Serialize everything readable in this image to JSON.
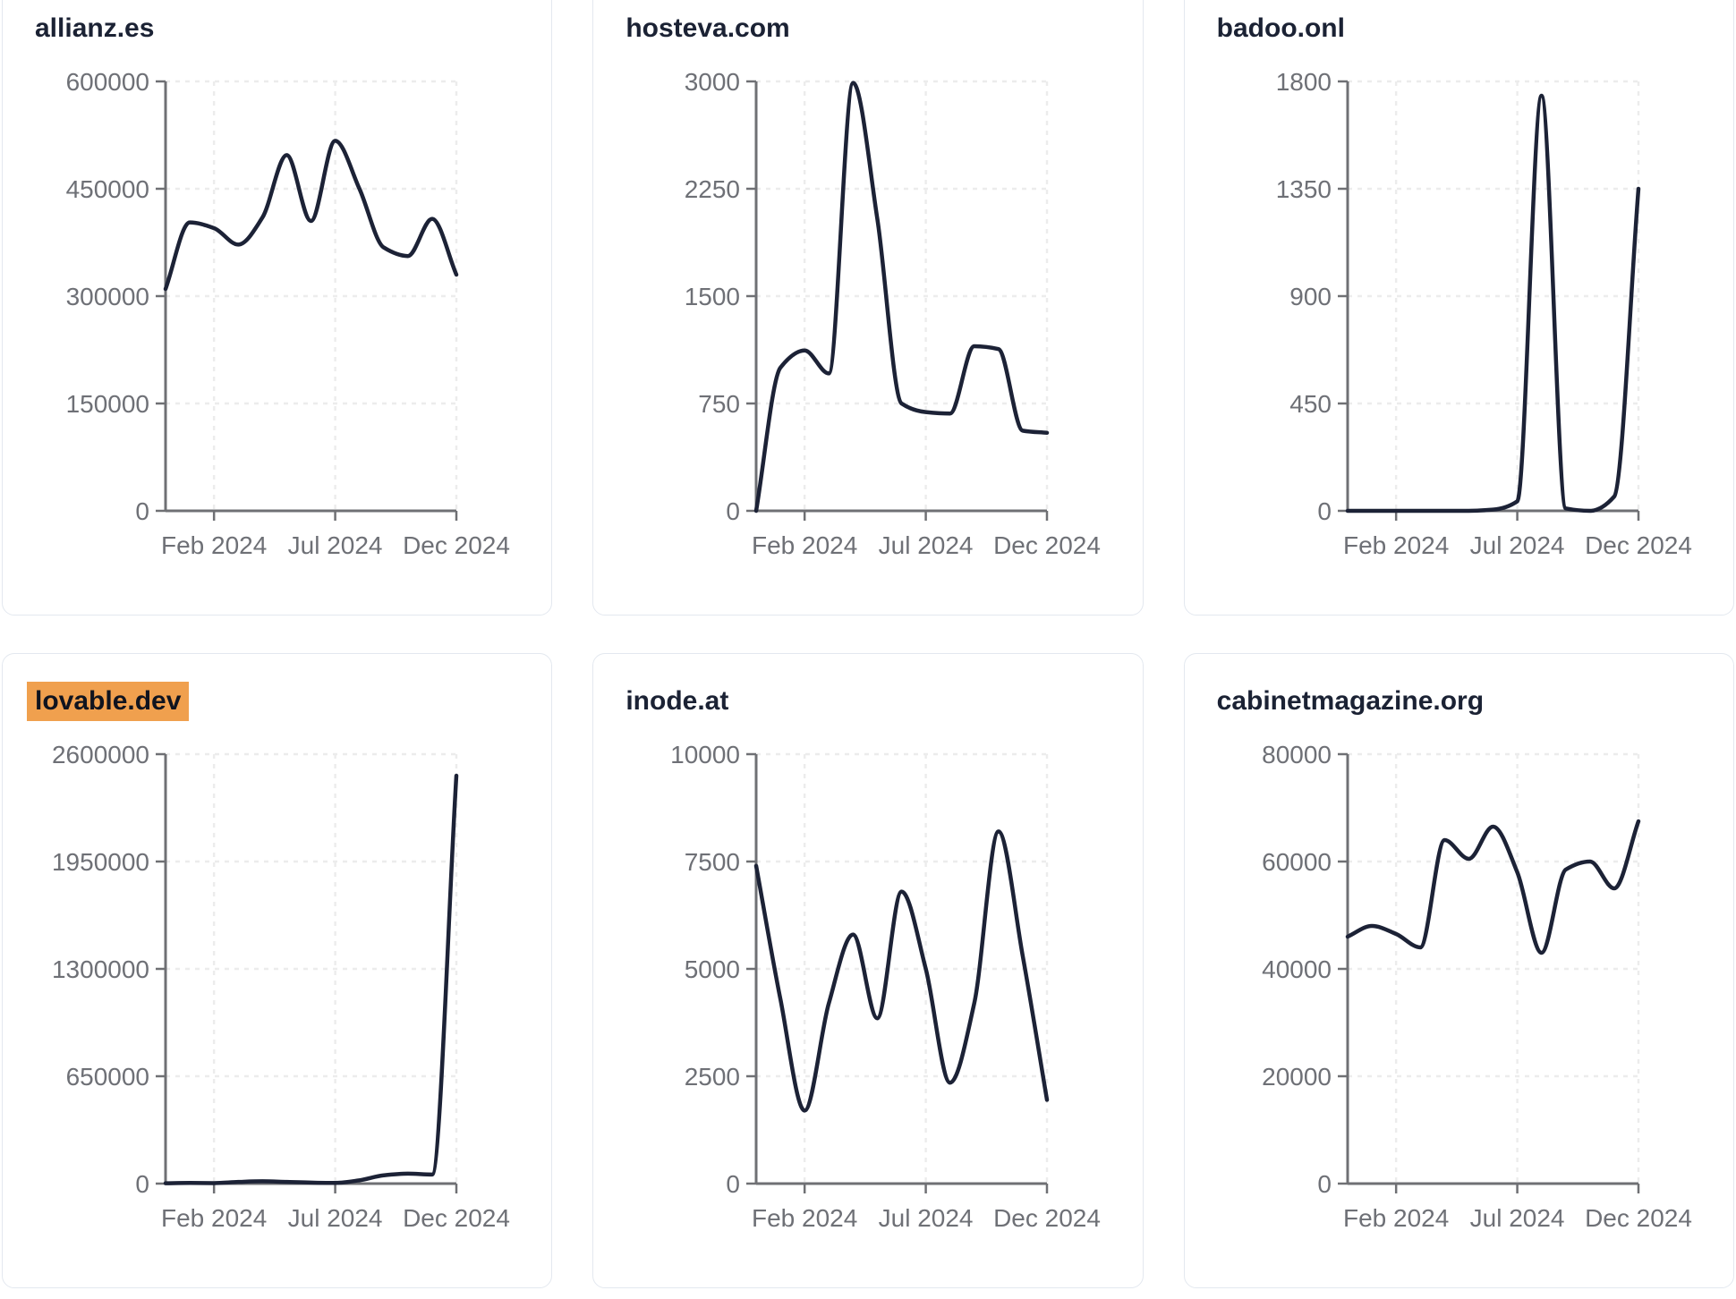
{
  "page": {
    "background": "#ffffff",
    "layout": "3x2-grid-of-domain-traffic-sparkline-cards"
  },
  "style": {
    "line_color": "#1c2236",
    "title_color": "#1b2234",
    "tick_label_color": "#6e7076",
    "axis_color": "#6f7074",
    "grid_color": "#ececec",
    "card_border_color": "#e3e8ef",
    "card_background": "#ffffff",
    "highlight_background": "#f0a04e",
    "highlight_text_color": "#10141f"
  },
  "x_axis": {
    "tick_labels": [
      "Feb 2024",
      "Jul 2024",
      "Dec 2024"
    ],
    "tick_indices": [
      2,
      7,
      12
    ],
    "n_points": 13,
    "range_note": "monthly points Dec 2023 through Dec 2024"
  },
  "chart_data": [
    {
      "type": "line",
      "title": "allianz.es",
      "highlighted": false,
      "ylim": [
        0,
        600000
      ],
      "yticks": [
        0,
        150000,
        300000,
        450000,
        600000
      ],
      "x_ticks": [
        "Feb 2024",
        "Jul 2024",
        "Dec 2024"
      ],
      "values": [
        310000,
        403000,
        395000,
        372000,
        410000,
        497000,
        405000,
        517000,
        450000,
        368000,
        356000,
        408000,
        330000
      ]
    },
    {
      "type": "line",
      "title": "hosteva.com",
      "highlighted": false,
      "ylim": [
        0,
        3000
      ],
      "yticks": [
        0,
        750,
        1500,
        2250,
        3000
      ],
      "x_ticks": [
        "Feb 2024",
        "Jul 2024",
        "Dec 2024"
      ],
      "values": [
        0,
        1000,
        1120,
        960,
        2990,
        2040,
        750,
        690,
        680,
        1150,
        1130,
        560,
        545
      ]
    },
    {
      "type": "line",
      "title": "badoo.onl",
      "highlighted": false,
      "ylim": [
        0,
        1800
      ],
      "yticks": [
        0,
        450,
        900,
        1350,
        1800
      ],
      "x_ticks": [
        "Feb 2024",
        "Jul 2024",
        "Dec 2024"
      ],
      "values": [
        0,
        0,
        0,
        0,
        0,
        0,
        5,
        40,
        1740,
        10,
        0,
        60,
        1350
      ]
    },
    {
      "type": "line",
      "title": "lovable.dev",
      "highlighted": true,
      "ylim": [
        0,
        2600000
      ],
      "yticks": [
        0,
        650000,
        1300000,
        1950000,
        2600000
      ],
      "x_ticks": [
        "Feb 2024",
        "Jul 2024",
        "Dec 2024"
      ],
      "values": [
        2000,
        4000,
        3000,
        10000,
        14000,
        10000,
        6000,
        4000,
        20000,
        50000,
        60000,
        55000,
        2470000
      ]
    },
    {
      "type": "line",
      "title": "inode.at",
      "highlighted": false,
      "ylim": [
        0,
        10000
      ],
      "yticks": [
        0,
        2500,
        5000,
        7500,
        10000
      ],
      "x_ticks": [
        "Feb 2024",
        "Jul 2024",
        "Dec 2024"
      ],
      "values": [
        7400,
        4300,
        1700,
        4200,
        5800,
        3850,
        6800,
        5000,
        2350,
        4200,
        8200,
        5300,
        1950
      ]
    },
    {
      "type": "line",
      "title": "cabinetmagazine.org",
      "highlighted": false,
      "ylim": [
        0,
        80000
      ],
      "yticks": [
        0,
        20000,
        40000,
        60000,
        80000
      ],
      "x_ticks": [
        "Feb 2024",
        "Jul 2024",
        "Dec 2024"
      ],
      "values": [
        46000,
        48000,
        46500,
        44000,
        64000,
        60500,
        66500,
        58000,
        43000,
        58500,
        60000,
        55000,
        67500
      ]
    }
  ]
}
